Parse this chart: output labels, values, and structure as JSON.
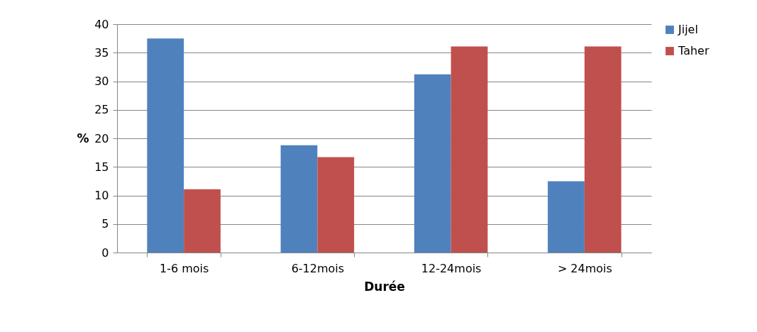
{
  "chart_data": {
    "type": "bar",
    "xlabel": "Durée",
    "ylabel": "%",
    "categories": [
      "1-6 mois",
      "6-12mois",
      "12-24mois",
      "> 24mois"
    ],
    "series": [
      {
        "name": "Jijel",
        "color": "#4f81bd",
        "values": [
          37.5,
          18.8,
          31.2,
          12.5
        ]
      },
      {
        "name": "Taher",
        "color": "#c0504d",
        "values": [
          11.1,
          16.7,
          36.1,
          36.1
        ]
      }
    ],
    "ylim": [
      0,
      40
    ],
    "yticks": [
      0,
      5,
      10,
      15,
      20,
      25,
      30,
      35,
      40
    ],
    "grid": "y",
    "legend": "right"
  }
}
